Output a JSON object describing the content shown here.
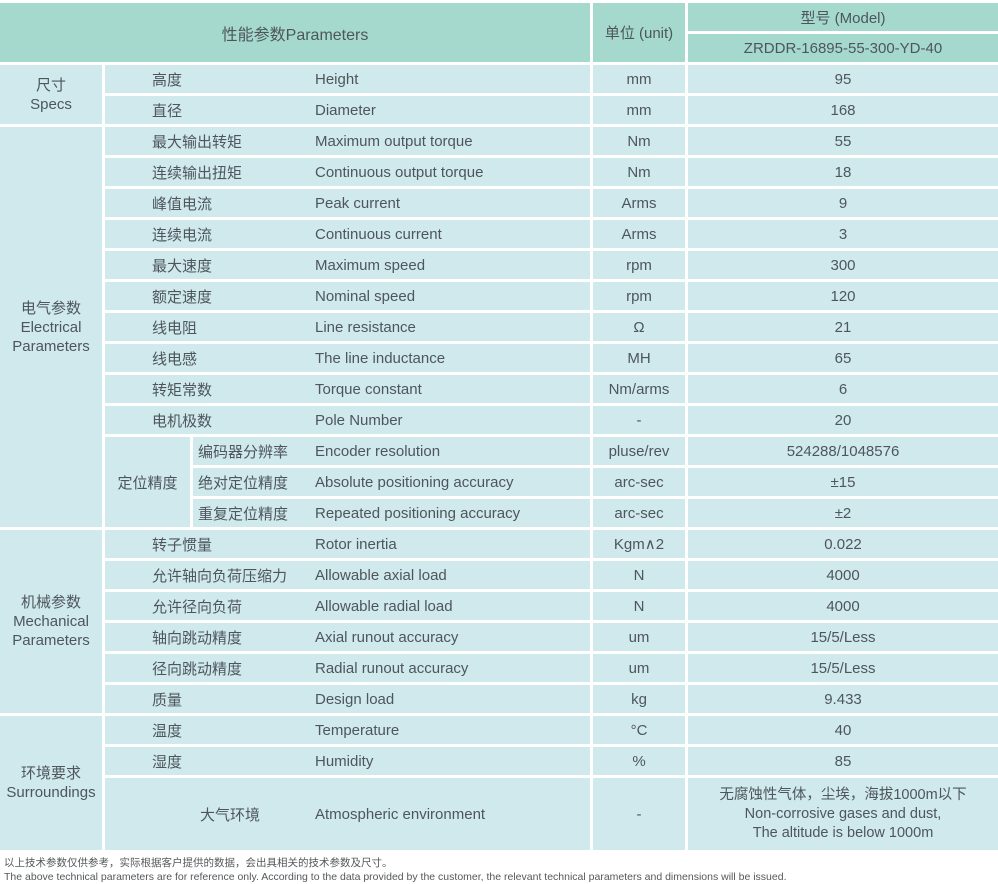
{
  "colors": {
    "header_bg": "#a5d9ce",
    "cell_bg": "#cfe9ed",
    "grid_line": "#ffffff",
    "text": "#4e565c"
  },
  "table": {
    "header": {
      "parameters": "性能参数Parameters",
      "unit": "单位 (unit)",
      "model": "型号 (Model)",
      "model_value": "ZRDDR-16895-55-300-YD-40"
    },
    "sections": [
      {
        "category": {
          "lines": [
            "尺寸",
            "Specs"
          ]
        },
        "rows": [
          {
            "cn": "高度",
            "en": "Height",
            "unit": "mm",
            "value": "95"
          },
          {
            "cn": "直径",
            "en": "Diameter",
            "unit": "mm",
            "value": "168"
          }
        ]
      },
      {
        "category": {
          "lines": [
            "电气参数",
            "Electrical",
            "Parameters"
          ]
        },
        "rows": [
          {
            "cn": "最大输出转矩",
            "en": "Maximum output torque",
            "unit": "Nm",
            "value": "55"
          },
          {
            "cn": "连续输出扭矩",
            "en": "Continuous output torque",
            "unit": "Nm",
            "value": "18"
          },
          {
            "cn": "峰值电流",
            "en": "Peak current",
            "unit": "Arms",
            "value": "9"
          },
          {
            "cn": "连续电流",
            "en": "Continuous current",
            "unit": "Arms",
            "value": "3"
          },
          {
            "cn": "最大速度",
            "en": "Maximum speed",
            "unit": "rpm",
            "value": "300"
          },
          {
            "cn": "额定速度",
            "en": "Nominal speed",
            "unit": "rpm",
            "value": "120"
          },
          {
            "cn": "线电阻",
            "en": "Line resistance",
            "unit": "Ω",
            "value": "21"
          },
          {
            "cn": "线电感",
            "en": "The line inductance",
            "unit": "MH",
            "value": "65"
          },
          {
            "cn": "转矩常数",
            "en": "Torque constant",
            "unit": "Nm/arms",
            "value": "6"
          },
          {
            "cn": "电机极数",
            "en": "Pole Number",
            "unit": "-",
            "value": "20"
          }
        ],
        "group": {
          "label": "定位精度",
          "rows": [
            {
              "cn": "编码器分辨率",
              "en": "Encoder resolution",
              "unit": "pluse/rev",
              "value": "524288/1048576"
            },
            {
              "cn": "绝对定位精度",
              "en": "Absolute positioning accuracy",
              "unit": "arc-sec",
              "value": "±15"
            },
            {
              "cn": "重复定位精度",
              "en": "Repeated positioning accuracy",
              "unit": "arc-sec",
              "value": "±2"
            }
          ]
        }
      },
      {
        "category": {
          "lines": [
            "机械参数",
            "Mechanical",
            "Parameters"
          ]
        },
        "rows": [
          {
            "cn": "转子惯量",
            "en": "Rotor inertia",
            "unit": "Kgm∧2",
            "value": "0.022"
          },
          {
            "cn": "允许轴向负荷压缩力",
            "en": "Allowable axial load",
            "unit": "N",
            "value": "4000"
          },
          {
            "cn": "允许径向负荷",
            "en": "Allowable radial load",
            "unit": "N",
            "value": "4000"
          },
          {
            "cn": "轴向跳动精度",
            "en": "Axial runout accuracy",
            "unit": "um",
            "value": "15/5/Less"
          },
          {
            "cn": "径向跳动精度",
            "en": "Radial runout accuracy",
            "unit": "um",
            "value": "15/5/Less"
          },
          {
            "cn": "质量",
            "en": "Design load",
            "unit": "kg",
            "value": "9.433"
          }
        ]
      },
      {
        "category": {
          "lines": [
            "环境要求",
            "Surroundings"
          ]
        },
        "rows": [
          {
            "cn": "温度",
            "en": "Temperature",
            "unit": "°C",
            "value": "40"
          },
          {
            "cn": "湿度",
            "en": "Humidity",
            "unit": "%",
            "value": "85"
          }
        ],
        "tall_row": {
          "cn": "大气环境",
          "en": "Atmospheric environment",
          "unit": "-",
          "value_lines": [
            "无腐蚀性气体，尘埃，海拔1000m以下",
            "Non-corrosive gases and dust,",
            "The altitude is below 1000m"
          ]
        }
      }
    ],
    "footer": {
      "line_cn": "以上技术参数仅供参考，实际根据客户提供的数据，会出具相关的技术参数及尺寸。",
      "line_en": "The above technical parameters are for reference only. According to the data provided by the customer, the relevant technical parameters and dimensions will be issued."
    }
  }
}
